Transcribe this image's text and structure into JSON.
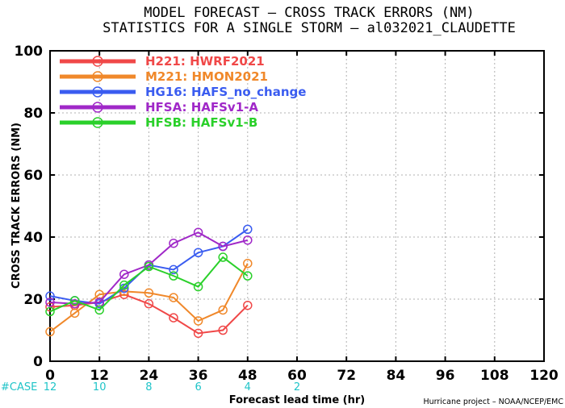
{
  "title": {
    "line1": "MODEL FORECAST – CROSS TRACK ERRORS (NM)",
    "line2": "STATISTICS FOR A SINGLE STORM – al032021_CLAUDETTE"
  },
  "footer": {
    "case_label": "#CASE",
    "credit": "Hurricane project – NOAA/NCEP/EMC"
  },
  "chart_data": {
    "type": "line",
    "title": "MODEL FORECAST – CROSS TRACK ERRORS (NM)",
    "subtitle": "STATISTICS FOR A SINGLE STORM – al032021_CLAUDETTE",
    "xlabel": "Forecast lead time (hr)",
    "ylabel": "CROSS TRACK ERRORS (NM)",
    "xlim": [
      0,
      120
    ],
    "ylim": [
      0,
      100
    ],
    "xticks": [
      0,
      12,
      24,
      36,
      48,
      60,
      72,
      84,
      96,
      108,
      120
    ],
    "yticks": [
      0,
      20,
      40,
      60,
      80,
      100
    ],
    "grid": true,
    "legend_position": "top-left",
    "cases": [
      {
        "x": 0,
        "n": 12
      },
      {
        "x": 12,
        "n": 10
      },
      {
        "x": 24,
        "n": 8
      },
      {
        "x": 36,
        "n": 6
      },
      {
        "x": 48,
        "n": 4
      },
      {
        "x": 60,
        "n": 2
      }
    ],
    "x": [
      0,
      6,
      12,
      18,
      24,
      30,
      36,
      42,
      48
    ],
    "series": [
      {
        "name": "H221: HWRF2021",
        "color": "#f04848",
        "values": [
          17.5,
          18,
          19,
          21.5,
          18.5,
          14,
          9,
          10,
          18
        ]
      },
      {
        "name": "M221: HMON2021",
        "color": "#f0882a",
        "values": [
          9.5,
          15.5,
          21.5,
          22.5,
          22,
          20.5,
          13,
          16.5,
          31.5
        ]
      },
      {
        "name": "HG16: HAFS_no_change",
        "color": "#3a5cf0",
        "values": [
          21,
          19.5,
          18.5,
          23.5,
          31,
          29.5,
          35,
          37,
          42.5
        ]
      },
      {
        "name": "HFSA: HAFSv1-A",
        "color": "#a028c8",
        "values": [
          19,
          18.5,
          19,
          28,
          31,
          38,
          41.5,
          37,
          39
        ]
      },
      {
        "name": "HFSB: HAFSv1-B",
        "color": "#2ad02a",
        "values": [
          16,
          19.5,
          16.5,
          24.5,
          30.5,
          27.5,
          24,
          33.5,
          27.5
        ]
      }
    ]
  }
}
